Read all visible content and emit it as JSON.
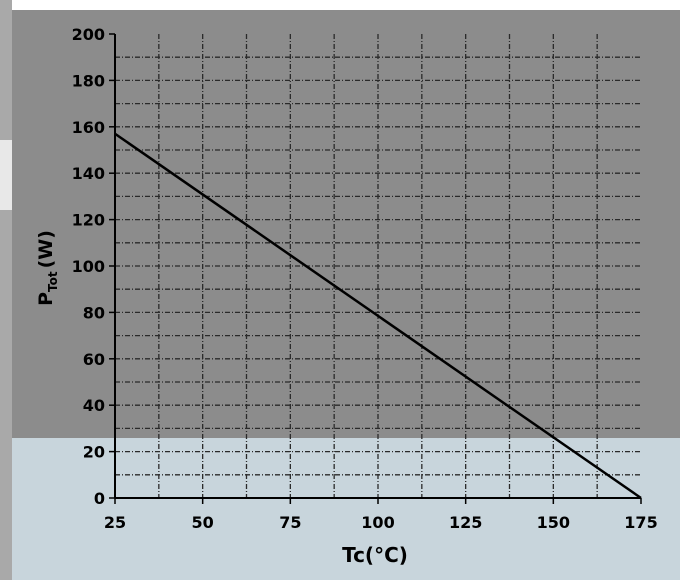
{
  "chart_data": {
    "type": "line",
    "xlabel": "Tc(°C)",
    "ylabel": "P",
    "ylabel_subscript": "Tot",
    "ylabel_unit": "(W)",
    "xlim": [
      25,
      175
    ],
    "ylim": [
      0,
      200
    ],
    "x_ticks": [
      25,
      50,
      75,
      100,
      125,
      150,
      175
    ],
    "y_ticks": [
      0,
      20,
      40,
      60,
      80,
      100,
      120,
      140,
      160,
      180,
      200
    ],
    "grid": true,
    "series": [
      {
        "x": [
          25,
          175
        ],
        "y": [
          157,
          0
        ]
      }
    ],
    "colors": {
      "plot_upper": "#8c8c8c",
      "plot_lower": "#c8d5dc",
      "grid": "#2a2a2a",
      "line": "#000000",
      "left_bar": "#a9a9a9"
    }
  }
}
